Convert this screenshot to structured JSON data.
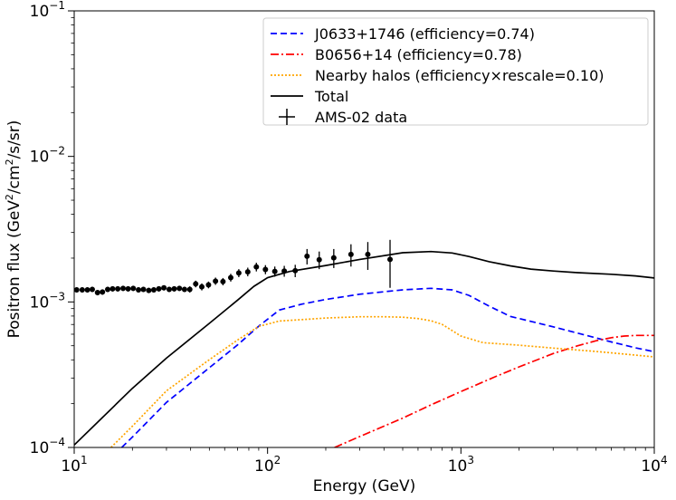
{
  "chart_data": {
    "type": "line",
    "xscale": "log",
    "yscale": "log",
    "xlim": [
      10,
      10000
    ],
    "ylim": [
      0.0001,
      0.1
    ],
    "xlabel": "Energy (GeV)",
    "ylabel": "Positron flux (GeV²/cm²/s/sr)",
    "ylabel_parts": {
      "a": "Positron flux (GeV",
      "sup1": "2",
      "b": "/cm",
      "sup2": "2",
      "c": "/s/sr)"
    },
    "x_ticks": [
      {
        "value": 10,
        "base": "10",
        "exp": "1"
      },
      {
        "value": 100,
        "base": "10",
        "exp": "2"
      },
      {
        "value": 1000,
        "base": "10",
        "exp": "3"
      },
      {
        "value": 10000,
        "base": "10",
        "exp": "4"
      }
    ],
    "y_ticks": [
      {
        "value": 0.0001,
        "base": "10",
        "exp": "−4"
      },
      {
        "value": 0.001,
        "base": "10",
        "exp": "−3"
      },
      {
        "value": 0.01,
        "base": "10",
        "exp": "−2"
      },
      {
        "value": 0.1,
        "base": "10",
        "exp": "−1"
      }
    ],
    "legend_position": "top-right",
    "series": [
      {
        "name": "J0633+1746 (efficiency=0.74)",
        "color": "#0000ff",
        "style": "dashed",
        "x": [
          17.6,
          20,
          30,
          50,
          70,
          90,
          115,
          150,
          200,
          300,
          500,
          700,
          900,
          1100,
          1400,
          1800,
          2300,
          3000,
          4000,
          6000,
          8000,
          10000
        ],
        "y": [
          0.0001,
          0.000118,
          0.000204,
          0.000353,
          0.000507,
          0.000681,
          0.00088,
          0.000965,
          0.00104,
          0.00113,
          0.00121,
          0.00124,
          0.00121,
          0.00111,
          0.000935,
          0.000795,
          0.000735,
          0.000675,
          0.000611,
          0.000531,
          0.000484,
          0.000455
        ]
      },
      {
        "name": "B0656+14 (efficiency=0.78)",
        "color": "#ff0000",
        "style": "dashdot",
        "x": [
          222,
          300,
          500,
          700,
          1000,
          1500,
          2000,
          3000,
          4000,
          5000,
          6000,
          7000,
          8000,
          10000
        ],
        "y": [
          0.0001,
          0.000119,
          0.000159,
          0.000196,
          0.000242,
          0.000306,
          0.000358,
          0.000442,
          0.000499,
          0.000541,
          0.000568,
          0.000583,
          0.000589,
          0.000589
        ]
      },
      {
        "name": "Nearby halos (efficiency×rescale=0.10)",
        "color": "#ffa500",
        "style": "dotted",
        "x": [
          15.5,
          20,
          30,
          50,
          70,
          90,
          115,
          150,
          200,
          300,
          400,
          500,
          600,
          700,
          800,
          1000,
          1300,
          2000,
          3000,
          5000,
          7000,
          10000
        ],
        "y": [
          0.0001,
          0.00014,
          0.000245,
          0.000401,
          0.000548,
          0.000678,
          0.000739,
          0.000756,
          0.000775,
          0.000791,
          0.000791,
          0.000785,
          0.000769,
          0.000743,
          0.000701,
          0.000583,
          0.000525,
          0.000504,
          0.000482,
          0.000457,
          0.000438,
          0.000419
        ]
      },
      {
        "name": "Total",
        "color": "#000000",
        "style": "solid",
        "x": [
          10,
          20,
          30,
          50,
          70,
          85,
          100,
          130,
          200,
          300,
          500,
          700,
          900,
          1100,
          1400,
          1800,
          2300,
          3000,
          4000,
          6000,
          8000,
          10000
        ],
        "y": [
          0.000104,
          0.000255,
          0.000411,
          0.000712,
          0.00103,
          0.00128,
          0.00147,
          0.00162,
          0.00178,
          0.00196,
          0.00218,
          0.00222,
          0.00217,
          0.00205,
          0.00189,
          0.00177,
          0.00168,
          0.00163,
          0.00159,
          0.00155,
          0.00151,
          0.00146
        ]
      }
    ],
    "errorbar_series": {
      "name": "AMS-02 data",
      "color": "#000000",
      "x": [
        10.3,
        11.0,
        11.7,
        12.4,
        13.2,
        14.0,
        14.9,
        15.8,
        16.8,
        17.9,
        19.0,
        20.2,
        21.5,
        22.8,
        24.3,
        25.8,
        27.4,
        29.1,
        31.0,
        32.9,
        35.0,
        37.2,
        39.6,
        42.5,
        45.7,
        49.5,
        53.8,
        58.8,
        64.5,
        71.0,
        79.0,
        87.5,
        97.5,
        109,
        122,
        139,
        160,
        185,
        220,
        270,
        330,
        430
      ],
      "y": [
        0.00121,
        0.00121,
        0.00121,
        0.00122,
        0.00116,
        0.00117,
        0.00122,
        0.00123,
        0.00123,
        0.00124,
        0.00123,
        0.00124,
        0.00121,
        0.00122,
        0.0012,
        0.00121,
        0.00123,
        0.00125,
        0.00122,
        0.00123,
        0.00124,
        0.00122,
        0.00122,
        0.00133,
        0.00127,
        0.00131,
        0.00139,
        0.00138,
        0.00147,
        0.00158,
        0.00161,
        0.00174,
        0.00167,
        0.00162,
        0.00163,
        0.00164,
        0.00206,
        0.00195,
        0.00201,
        0.00212,
        0.00212,
        0.00196
      ],
      "yerr_low": [
        5e-05,
        5e-05,
        5e-05,
        5e-05,
        5e-05,
        5e-05,
        5e-05,
        5e-05,
        5e-05,
        5e-05,
        5e-05,
        5e-05,
        5e-05,
        5e-05,
        5e-05,
        5e-05,
        5e-05,
        5e-05,
        5e-05,
        5e-05,
        5e-05,
        5e-05,
        6e-05,
        7e-05,
        7e-05,
        7e-05,
        8e-05,
        8e-05,
        9e-05,
        0.0001,
        0.00011,
        0.00012,
        0.00012,
        0.00013,
        0.00014,
        0.00016,
        0.00025,
        0.00027,
        0.0003,
        0.00037,
        0.00046,
        0.00071
      ],
      "yerr_high": [
        5e-05,
        5e-05,
        5e-05,
        5e-05,
        5e-05,
        5e-05,
        5e-05,
        5e-05,
        5e-05,
        5e-05,
        5e-05,
        5e-05,
        5e-05,
        5e-05,
        5e-05,
        5e-05,
        5e-05,
        5e-05,
        5e-05,
        5e-05,
        5e-05,
        5e-05,
        6e-05,
        7e-05,
        7e-05,
        7e-05,
        8e-05,
        8e-05,
        9e-05,
        0.0001,
        0.00011,
        0.00012,
        0.00012,
        0.00013,
        0.00014,
        0.00016,
        0.00025,
        0.00027,
        0.0003,
        0.00037,
        0.00046,
        0.00071
      ]
    },
    "legend": [
      {
        "label": "J0633+1746 (efficiency=0.74)",
        "series": 0
      },
      {
        "label": "B0656+14 (efficiency=0.78)",
        "series": 1
      },
      {
        "label": "Nearby halos (efficiency×rescale=0.10)",
        "series": 2
      },
      {
        "label": "Total",
        "series": 3
      },
      {
        "label": "AMS-02 data",
        "series": "errorbar"
      }
    ]
  }
}
